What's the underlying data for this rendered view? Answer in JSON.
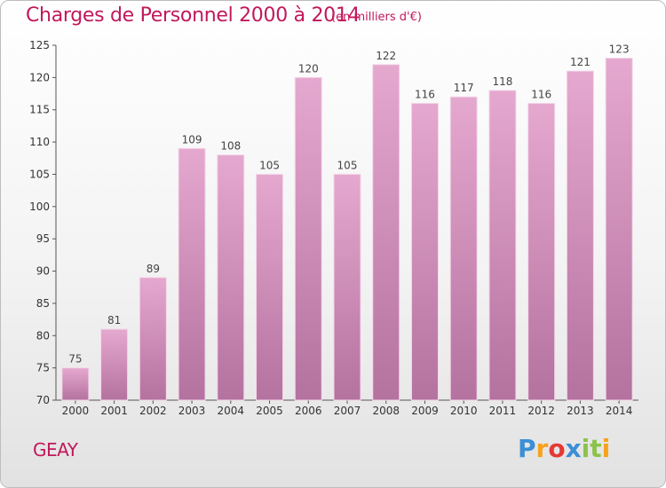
{
  "title": "Charges de Personnel 2000 à 2014",
  "subtitle": "(en milliers d'€)",
  "commune": "GEAY",
  "logo": {
    "text": "Proxiti",
    "letters": [
      "P",
      "r",
      "o",
      "x",
      "i",
      "t",
      "i"
    ],
    "colors": [
      "#3b8fd6",
      "#f7a21b",
      "#e53935",
      "#3b8fd6",
      "#8bc34a",
      "#8bc34a",
      "#f7a21b"
    ]
  },
  "colors": {
    "accent": "#c2185b",
    "bar_top": "#e5a8cf",
    "bar_bottom": "#b4729f"
  },
  "chart_data": {
    "type": "bar",
    "categories": [
      "2000",
      "2001",
      "2002",
      "2003",
      "2004",
      "2005",
      "2006",
      "2007",
      "2008",
      "2009",
      "2010",
      "2011",
      "2012",
      "2013",
      "2014"
    ],
    "values": [
      75,
      81,
      89,
      109,
      108,
      105,
      120,
      105,
      122,
      116,
      117,
      118,
      116,
      121,
      123
    ],
    "ylim": [
      70,
      125
    ],
    "yticks": [
      70,
      75,
      80,
      85,
      90,
      95,
      100,
      105,
      110,
      115,
      120,
      125
    ],
    "grid": false,
    "legend": "none"
  }
}
